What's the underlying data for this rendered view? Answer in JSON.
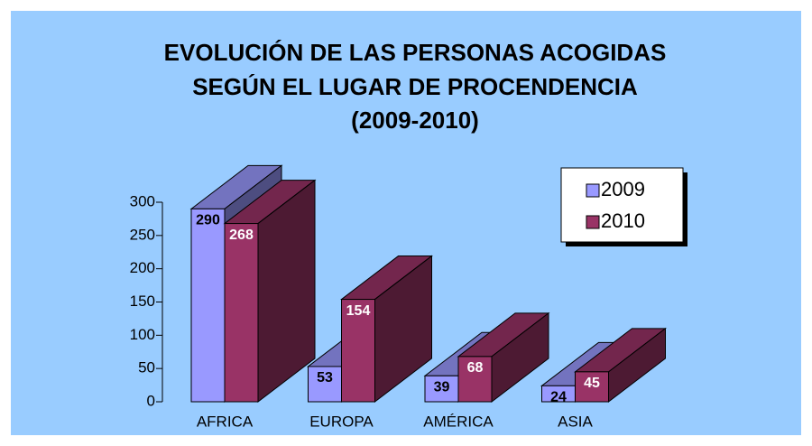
{
  "chart_data": {
    "type": "bar3d",
    "title": [
      "EVOLUCIÓN DE LAS PERSONAS ACOGIDAS",
      "SEGÚN EL LUGAR DE PROCENDENCIA",
      "(2009-2010)"
    ],
    "categories": [
      "AFRICA",
      "EUROPA",
      "AMÉRICA",
      "ASIA"
    ],
    "series": [
      {
        "name": "2009",
        "color": "#9999ff",
        "label_color": "#000000",
        "values": [
          290,
          53,
          39,
          24
        ]
      },
      {
        "name": "2010",
        "color": "#993366",
        "label_color": "#ffffff",
        "values": [
          268,
          154,
          68,
          45
        ]
      }
    ],
    "ylim": [
      0,
      300
    ],
    "yticks": [
      0,
      50,
      100,
      150,
      200,
      250,
      300
    ],
    "background": "#99ccff",
    "legend": "upper right"
  }
}
